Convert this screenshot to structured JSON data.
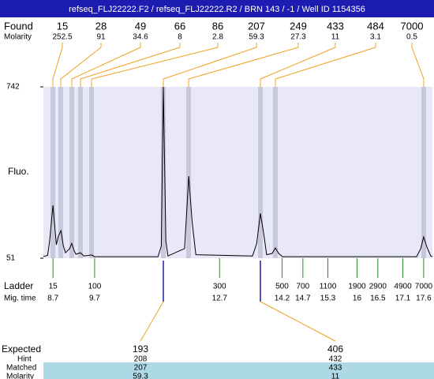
{
  "header": {
    "title": "refseq_FLJ22222.F2 / refseq_FLJ22222.R2 / BRN 143 / -1 / Well ID 1154356"
  },
  "found": {
    "label": "Found",
    "molarity_label": "Molarity",
    "sizes": [
      15,
      28,
      49,
      66,
      86,
      207,
      249,
      433,
      484,
      7000
    ],
    "molarity": [
      252.5,
      91,
      34.6,
      8,
      2.8,
      59.3,
      27.3,
      11,
      3.1,
      0.5
    ]
  },
  "chart_data": {
    "type": "line",
    "y_label": "Fluo.",
    "color": "#000000",
    "x": [
      8.47,
      8.57,
      8.62,
      8.7,
      8.78,
      8.83,
      8.89,
      8.95,
      9.0,
      9.1,
      9.15,
      9.21,
      9.25,
      9.36,
      9.44,
      9.63,
      9.7,
      11.22,
      11.3,
      11.35,
      11.41,
      11.46,
      11.86,
      11.96,
      12.04,
      12.13,
      13.49,
      13.59,
      13.68,
      13.76,
      13.83,
      13.96,
      14.04,
      14.12,
      14.21,
      17.43,
      17.53,
      17.6,
      17.68,
      17.77,
      17.81
    ],
    "values": [
      58,
      62,
      120,
      264,
      105,
      140,
      162,
      100,
      73,
      90,
      111,
      80,
      67,
      73,
      60,
      64,
      57,
      57,
      100,
      742,
      120,
      60,
      90,
      382,
      200,
      65,
      60,
      110,
      232,
      150,
      65,
      70,
      92,
      70,
      57,
      57,
      90,
      137,
      95,
      60,
      57
    ],
    "xlim": [
      8.47,
      17.81
    ],
    "ylim": [
      51,
      742
    ],
    "yticks": [
      51,
      742
    ]
  },
  "ladder": {
    "label": "Ladder",
    "time_label": "Mig. time",
    "sizes": [
      15,
      100,
      300,
      500,
      700,
      1100,
      1900,
      2900,
      4900,
      7000
    ],
    "times": [
      8.7,
      9.7,
      12.7,
      14.2,
      14.7,
      15.3,
      16,
      16.5,
      17.1,
      17.6
    ]
  },
  "expected": {
    "labels": [
      "Expected",
      "Hint",
      "Matched",
      "Molarity"
    ],
    "columns": [
      [
        193,
        208,
        207,
        59.3
      ],
      [
        406,
        432,
        433,
        11
      ]
    ]
  }
}
